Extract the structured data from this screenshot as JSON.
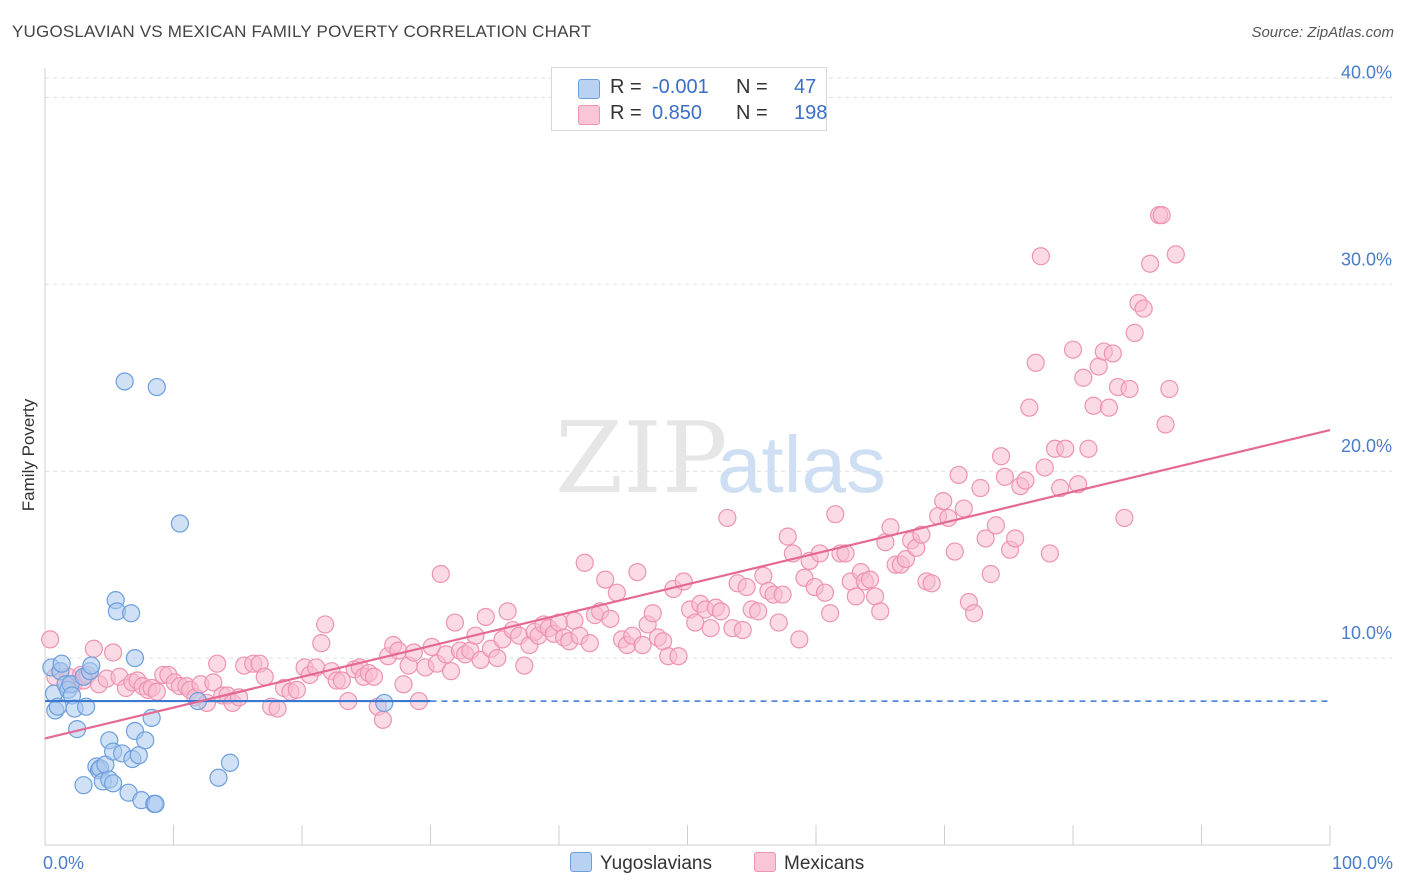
{
  "header": {
    "title": "YUGOSLAVIAN VS MEXICAN FAMILY POVERTY CORRELATION CHART",
    "source": "Source: ZipAtlas.com"
  },
  "legend": {
    "r_label": "R =",
    "n_label": "N =",
    "rows": [
      {
        "r": "-0.001",
        "n": "47"
      },
      {
        "r": "0.850",
        "n": "198"
      }
    ]
  },
  "bottom_legend": {
    "yugoslavians": "Yugoslavians",
    "mexicans": "Mexicans"
  },
  "watermark": {
    "zip": "ZIP",
    "atlas": "atlas"
  },
  "colors": {
    "blue_fill": "#a9c8ee",
    "blue_stroke": "#6d9fdc",
    "blue_line": "#3b78d0",
    "pink_fill": "#f7bcd0",
    "pink_stroke": "#ee93b2",
    "pink_line": "#e46a95",
    "grid": "#dedede",
    "axis": "#cfcfcf"
  },
  "chart_data": {
    "type": "scatter",
    "title": "YUGOSLAVIAN VS MEXICAN FAMILY POVERTY CORRELATION CHART",
    "xlabel": "",
    "ylabel": "Family Poverty",
    "xlim": [
      0,
      100
    ],
    "ylim": [
      0,
      42
    ],
    "x_tick_labels": [
      "0.0%",
      "100.0%"
    ],
    "y_ticks": [
      10,
      20,
      30,
      40
    ],
    "y_tick_labels": [
      "10.0%",
      "20.0%",
      "30.0%",
      "40.0%"
    ],
    "series": [
      {
        "name": "Yugoslavians",
        "R": -0.001,
        "N": 47,
        "trend": {
          "x0": 0,
          "y0": 7.7,
          "x1": 30,
          "y1": 7.7,
          "dashed_to": 100
        },
        "points": [
          [
            0.5,
            9.5
          ],
          [
            0.7,
            8.1
          ],
          [
            0.8,
            7.2
          ],
          [
            1.0,
            7.4
          ],
          [
            1.2,
            9.3
          ],
          [
            1.3,
            9.7
          ],
          [
            1.6,
            8.6
          ],
          [
            1.8,
            8.3
          ],
          [
            2.0,
            8.6
          ],
          [
            2.1,
            8.0
          ],
          [
            2.3,
            7.3
          ],
          [
            2.5,
            6.2
          ],
          [
            3.0,
            9.0
          ],
          [
            3.2,
            7.4
          ],
          [
            3.5,
            9.3
          ],
          [
            3.6,
            9.6
          ],
          [
            4.0,
            4.2
          ],
          [
            4.2,
            4.0
          ],
          [
            4.3,
            4.1
          ],
          [
            4.5,
            3.4
          ],
          [
            4.7,
            4.3
          ],
          [
            5.0,
            3.5
          ],
          [
            5.0,
            5.6
          ],
          [
            5.3,
            5.0
          ],
          [
            5.5,
            13.1
          ],
          [
            5.6,
            12.5
          ],
          [
            6.0,
            4.9
          ],
          [
            6.2,
            24.8
          ],
          [
            6.5,
            2.8
          ],
          [
            6.7,
            12.4
          ],
          [
            6.8,
            4.6
          ],
          [
            7.0,
            10.0
          ],
          [
            7.0,
            6.1
          ],
          [
            7.3,
            4.8
          ],
          [
            7.5,
            2.4
          ],
          [
            7.8,
            5.6
          ],
          [
            8.3,
            6.8
          ],
          [
            8.5,
            2.2
          ],
          [
            8.7,
            24.5
          ],
          [
            8.6,
            2.2
          ],
          [
            10.5,
            17.2
          ],
          [
            11.9,
            7.7
          ],
          [
            13.5,
            3.6
          ],
          [
            14.4,
            4.4
          ],
          [
            3.0,
            3.2
          ],
          [
            5.3,
            3.3
          ],
          [
            26.4,
            7.6
          ]
        ]
      },
      {
        "name": "Mexicans",
        "R": 0.85,
        "N": 198,
        "trend": {
          "x0": 0,
          "y0": 5.7,
          "x1": 100,
          "y1": 22.2
        },
        "points": [
          [
            0.4,
            11.0
          ],
          [
            0.8,
            9.0
          ],
          [
            1.2,
            9.3
          ],
          [
            1.8,
            9.0
          ],
          [
            2.2,
            8.6
          ],
          [
            2.8,
            9.1
          ],
          [
            3.0,
            8.8
          ],
          [
            3.3,
            9.1
          ],
          [
            3.8,
            10.5
          ],
          [
            4.2,
            8.6
          ],
          [
            4.8,
            8.9
          ],
          [
            5.3,
            10.3
          ],
          [
            5.8,
            9.0
          ],
          [
            6.3,
            8.4
          ],
          [
            6.8,
            8.7
          ],
          [
            7.2,
            8.8
          ],
          [
            7.6,
            8.5
          ],
          [
            8.0,
            8.3
          ],
          [
            8.3,
            8.4
          ],
          [
            8.7,
            8.2
          ],
          [
            9.2,
            9.1
          ],
          [
            9.6,
            9.1
          ],
          [
            10.1,
            8.7
          ],
          [
            10.5,
            8.5
          ],
          [
            11.0,
            8.5
          ],
          [
            11.3,
            8.3
          ],
          [
            11.7,
            7.9
          ],
          [
            12.1,
            8.6
          ],
          [
            12.6,
            7.6
          ],
          [
            13.1,
            8.7
          ],
          [
            13.4,
            9.7
          ],
          [
            13.8,
            8.0
          ],
          [
            14.2,
            8.0
          ],
          [
            14.6,
            7.6
          ],
          [
            15.1,
            7.9
          ],
          [
            15.5,
            9.6
          ],
          [
            16.2,
            9.7
          ],
          [
            16.7,
            9.7
          ],
          [
            17.1,
            9.0
          ],
          [
            17.6,
            7.4
          ],
          [
            18.1,
            7.3
          ],
          [
            18.6,
            8.4
          ],
          [
            19.1,
            8.2
          ],
          [
            19.6,
            8.3
          ],
          [
            20.2,
            9.5
          ],
          [
            20.6,
            9.1
          ],
          [
            21.1,
            9.5
          ],
          [
            21.5,
            10.8
          ],
          [
            21.8,
            11.8
          ],
          [
            22.3,
            9.3
          ],
          [
            22.7,
            8.8
          ],
          [
            23.1,
            8.8
          ],
          [
            23.6,
            7.7
          ],
          [
            24.1,
            9.4
          ],
          [
            24.5,
            9.5
          ],
          [
            24.8,
            9.0
          ],
          [
            25.2,
            9.2
          ],
          [
            25.6,
            9.0
          ],
          [
            25.9,
            7.4
          ],
          [
            26.3,
            6.7
          ],
          [
            26.7,
            10.1
          ],
          [
            27.1,
            10.7
          ],
          [
            27.5,
            10.4
          ],
          [
            27.9,
            8.6
          ],
          [
            28.3,
            9.6
          ],
          [
            28.7,
            10.3
          ],
          [
            29.1,
            7.7
          ],
          [
            29.6,
            9.5
          ],
          [
            30.1,
            10.6
          ],
          [
            30.5,
            9.7
          ],
          [
            30.8,
            14.5
          ],
          [
            31.2,
            10.2
          ],
          [
            31.6,
            9.3
          ],
          [
            31.9,
            11.9
          ],
          [
            32.3,
            10.4
          ],
          [
            32.7,
            10.2
          ],
          [
            33.1,
            10.4
          ],
          [
            33.5,
            11.2
          ],
          [
            33.9,
            9.9
          ],
          [
            34.3,
            12.2
          ],
          [
            34.7,
            10.5
          ],
          [
            35.2,
            10.0
          ],
          [
            35.6,
            11.0
          ],
          [
            36.0,
            12.5
          ],
          [
            36.4,
            11.5
          ],
          [
            36.9,
            11.2
          ],
          [
            37.3,
            9.6
          ],
          [
            37.7,
            10.7
          ],
          [
            38.1,
            11.4
          ],
          [
            38.4,
            11.2
          ],
          [
            38.8,
            11.8
          ],
          [
            39.2,
            11.6
          ],
          [
            39.6,
            11.3
          ],
          [
            40.0,
            11.9
          ],
          [
            40.4,
            11.1
          ],
          [
            40.8,
            10.9
          ],
          [
            41.2,
            12.0
          ],
          [
            41.6,
            11.2
          ],
          [
            42.0,
            15.1
          ],
          [
            42.4,
            10.8
          ],
          [
            42.8,
            12.3
          ],
          [
            43.2,
            12.5
          ],
          [
            43.6,
            14.2
          ],
          [
            44.0,
            12.1
          ],
          [
            44.5,
            13.5
          ],
          [
            44.9,
            11.0
          ],
          [
            45.3,
            10.7
          ],
          [
            45.7,
            11.2
          ],
          [
            46.1,
            14.6
          ],
          [
            46.5,
            10.7
          ],
          [
            46.9,
            11.8
          ],
          [
            47.3,
            12.4
          ],
          [
            47.7,
            11.1
          ],
          [
            48.1,
            10.9
          ],
          [
            48.5,
            10.1
          ],
          [
            48.9,
            13.7
          ],
          [
            49.3,
            10.1
          ],
          [
            49.7,
            14.1
          ],
          [
            50.2,
            12.6
          ],
          [
            50.6,
            11.9
          ],
          [
            51.0,
            12.9
          ],
          [
            51.4,
            12.6
          ],
          [
            51.8,
            11.6
          ],
          [
            52.2,
            12.7
          ],
          [
            52.6,
            12.5
          ],
          [
            53.1,
            17.5
          ],
          [
            53.5,
            11.6
          ],
          [
            53.9,
            14.0
          ],
          [
            54.3,
            11.5
          ],
          [
            54.6,
            13.8
          ],
          [
            55.0,
            12.6
          ],
          [
            55.5,
            12.5
          ],
          [
            55.9,
            14.4
          ],
          [
            56.3,
            13.6
          ],
          [
            56.7,
            13.4
          ],
          [
            57.1,
            11.9
          ],
          [
            57.4,
            13.4
          ],
          [
            57.8,
            16.5
          ],
          [
            58.2,
            15.6
          ],
          [
            58.7,
            11.0
          ],
          [
            59.1,
            14.3
          ],
          [
            59.5,
            15.2
          ],
          [
            59.9,
            13.8
          ],
          [
            60.3,
            15.6
          ],
          [
            60.7,
            13.5
          ],
          [
            61.1,
            12.4
          ],
          [
            61.5,
            17.7
          ],
          [
            61.9,
            15.6
          ],
          [
            62.3,
            15.6
          ],
          [
            62.7,
            14.1
          ],
          [
            63.1,
            13.3
          ],
          [
            63.5,
            14.6
          ],
          [
            63.8,
            14.1
          ],
          [
            64.2,
            14.2
          ],
          [
            64.6,
            13.3
          ],
          [
            65.0,
            12.5
          ],
          [
            65.4,
            16.2
          ],
          [
            65.8,
            17.0
          ],
          [
            66.2,
            15.0
          ],
          [
            66.6,
            15.0
          ],
          [
            67.0,
            15.3
          ],
          [
            67.4,
            16.3
          ],
          [
            67.8,
            15.9
          ],
          [
            68.2,
            16.6
          ],
          [
            68.6,
            14.1
          ],
          [
            69.0,
            14.0
          ],
          [
            69.5,
            17.6
          ],
          [
            69.9,
            18.4
          ],
          [
            70.3,
            17.5
          ],
          [
            70.8,
            15.7
          ],
          [
            71.1,
            19.8
          ],
          [
            71.5,
            18.0
          ],
          [
            71.9,
            13.0
          ],
          [
            72.3,
            12.4
          ],
          [
            72.8,
            19.1
          ],
          [
            73.2,
            16.4
          ],
          [
            73.6,
            14.5
          ],
          [
            74.0,
            17.1
          ],
          [
            74.4,
            20.8
          ],
          [
            74.7,
            19.7
          ],
          [
            75.1,
            15.8
          ],
          [
            75.5,
            16.4
          ],
          [
            75.9,
            19.2
          ],
          [
            76.3,
            19.5
          ],
          [
            76.6,
            23.4
          ],
          [
            77.1,
            25.8
          ],
          [
            77.5,
            31.5
          ],
          [
            77.8,
            20.2
          ],
          [
            78.2,
            15.6
          ],
          [
            78.6,
            21.2
          ],
          [
            79.0,
            19.1
          ],
          [
            79.4,
            21.2
          ],
          [
            80.0,
            26.5
          ],
          [
            80.4,
            19.3
          ],
          [
            80.8,
            25.0
          ],
          [
            81.2,
            21.2
          ],
          [
            81.6,
            23.5
          ],
          [
            82.0,
            25.6
          ],
          [
            82.4,
            26.4
          ],
          [
            82.8,
            23.4
          ],
          [
            83.1,
            26.3
          ],
          [
            83.5,
            24.5
          ],
          [
            84.0,
            17.5
          ],
          [
            84.4,
            24.4
          ],
          [
            84.8,
            27.4
          ],
          [
            85.1,
            29.0
          ],
          [
            85.5,
            28.7
          ],
          [
            86.0,
            31.1
          ],
          [
            86.7,
            33.7
          ],
          [
            87.2,
            22.5
          ],
          [
            87.5,
            24.4
          ],
          [
            88.0,
            31.6
          ],
          [
            86.9,
            33.7
          ]
        ]
      }
    ]
  }
}
